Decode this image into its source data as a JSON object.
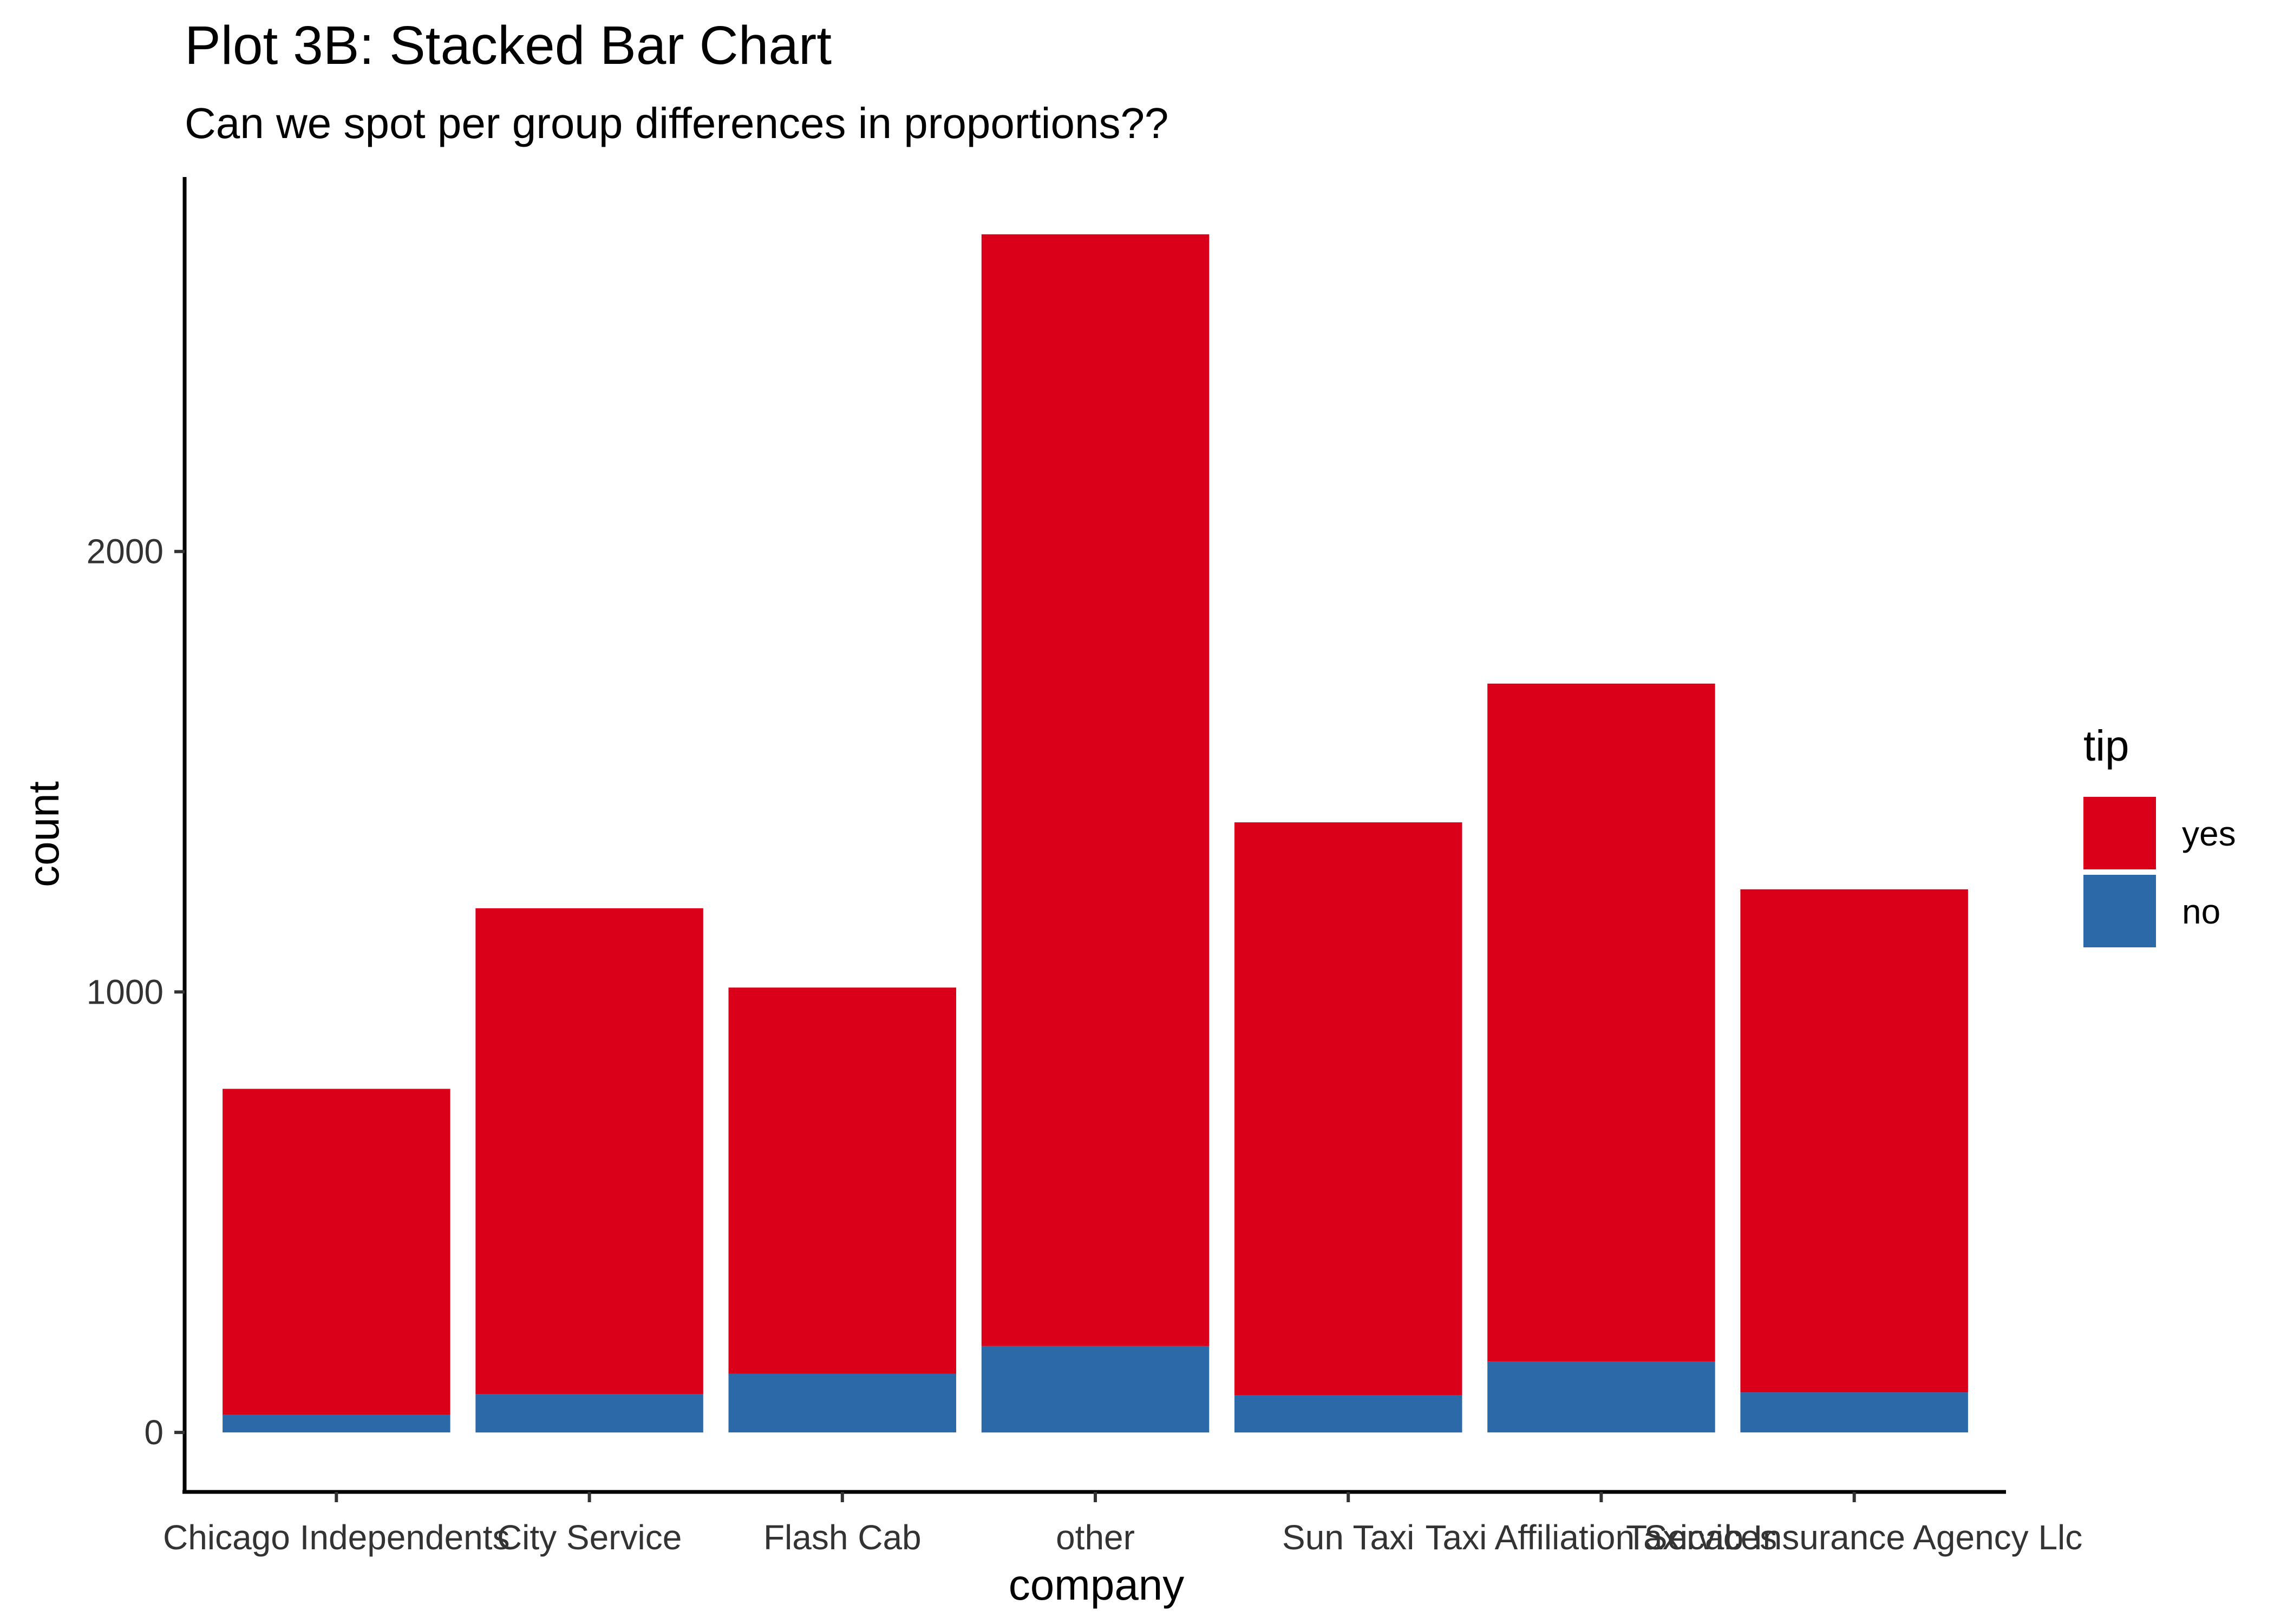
{
  "chart_data": {
    "type": "bar",
    "stacked": true,
    "title": "Plot 3B: Stacked Bar Chart",
    "subtitle": "Can we spot per group differences in proportions??",
    "xlabel": "company",
    "ylabel": "count",
    "categories": [
      "Chicago Independents",
      "City Service",
      "Flash Cab",
      "other",
      "Sun Taxi",
      "Taxi Affiliation Services",
      "Taxicab Insurance Agency Llc"
    ],
    "series": [
      {
        "name": "no",
        "color": "#2c69a9",
        "values": [
          40,
          87,
          133,
          196,
          84,
          161,
          91
        ]
      },
      {
        "name": "yes",
        "color": "#da0019",
        "values": [
          740,
          1103,
          877,
          2524,
          1301,
          1539,
          1142
        ]
      }
    ],
    "yticks": [
      0,
      1000,
      2000
    ],
    "ytick_labels": [
      "0",
      "1000",
      "2000"
    ],
    "ylim": [
      -135,
      2850
    ],
    "grid": false,
    "legend": {
      "title": "tip",
      "position": "right",
      "entries": [
        {
          "label": "yes",
          "color": "#da0019"
        },
        {
          "label": "no",
          "color": "#2c69a9"
        }
      ]
    }
  }
}
